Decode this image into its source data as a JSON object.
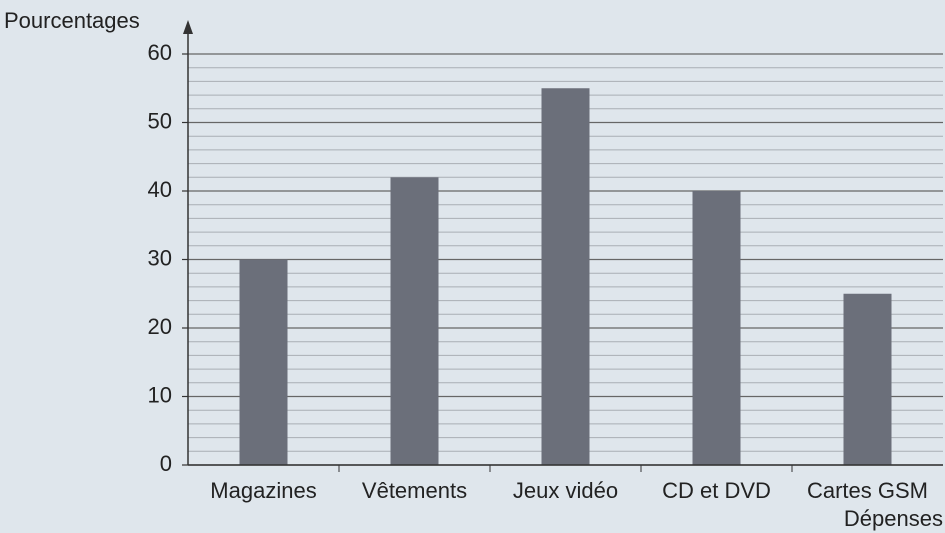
{
  "chart_data": {
    "type": "bar",
    "categories": [
      "Magazines",
      "Vêtements",
      "Jeux vidéo",
      "CD et DVD",
      "Cartes GSM"
    ],
    "values": [
      30,
      42,
      55,
      40,
      25
    ],
    "color": "#6b6f7a",
    "y_label": "Pourcentages",
    "x_label": "Dépenses",
    "ylim": [
      0,
      60
    ],
    "yticks": [
      0,
      10,
      20,
      30,
      40,
      50,
      60
    ],
    "yticks_minor": [
      2,
      4,
      6,
      8,
      12,
      14,
      16,
      18,
      22,
      24,
      26,
      28,
      32,
      34,
      36,
      38,
      42,
      44,
      46,
      48,
      52,
      54,
      56,
      58
    ],
    "grid": true
  }
}
